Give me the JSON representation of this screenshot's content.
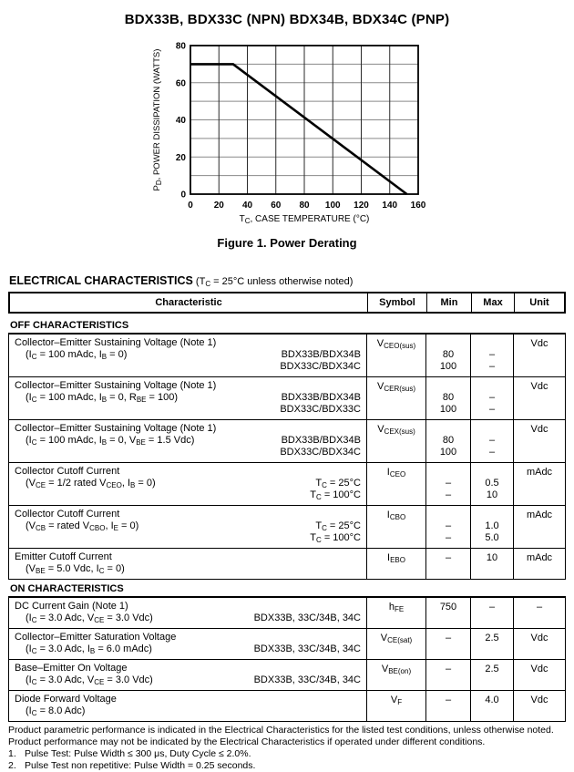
{
  "page": {
    "title": "BDX33B, BDX33C (NPN) BDX34B, BDX34C (PNP)"
  },
  "figure": {
    "caption": "Figure 1. Power Derating"
  },
  "chart_data": {
    "type": "line",
    "title": "Figure 1. Power Derating",
    "xlabel": "T~C~, CASE TEMPERATURE (°C)",
    "ylabel": "P~D~, POWER DISSIPATION (WATTS)",
    "xlim": [
      0,
      160
    ],
    "ylim": [
      0,
      80
    ],
    "x_ticks": [
      0,
      20,
      40,
      60,
      80,
      100,
      120,
      140,
      160
    ],
    "y_ticks": [
      0,
      20,
      40,
      60,
      80
    ],
    "x_grid_step": 20,
    "y_grid_step": 10,
    "grid": true,
    "legend_position": "none",
    "series": [
      {
        "name": "power-derating",
        "points": [
          [
            0,
            70
          ],
          [
            30,
            70
          ],
          [
            152,
            0
          ]
        ]
      }
    ]
  },
  "electrical": {
    "heading_bold": "ELECTRICAL CHARACTERISTICS",
    "heading_rest": "(T~C~ = 25°C unless otherwise noted)"
  },
  "table": {
    "columns": [
      "Characteristic",
      "Symbol",
      "Min",
      "Max",
      "Unit"
    ],
    "sections": [
      {
        "title": "OFF CHARACTERISTICS",
        "rows": [
          {
            "name": "Collector–Emitter Sustaining Voltage (Note 1)",
            "condition": "(I~C~ = 100 mAdc, I~B~ = 0)",
            "right_lines": [
              "BDX33B/BDX34B",
              "BDX33C/BDX34C"
            ],
            "symbol": "V~CEO(sus)~",
            "min": [
              "80",
              "100"
            ],
            "max": [
              "–",
              "–"
            ],
            "unit": "Vdc"
          },
          {
            "name": "Collector–Emitter Sustaining Voltage (Note 1)",
            "condition": "(I~C~ = 100 mAdc, I~B~ = 0, R~BE~ = 100)",
            "right_lines": [
              "BDX33B/BDX34B",
              "BDX33C/BDX33C"
            ],
            "symbol": "V~CER(sus)~",
            "min": [
              "80",
              "100"
            ],
            "max": [
              "–",
              "–"
            ],
            "unit": "Vdc"
          },
          {
            "name": "Collector–Emitter Sustaining Voltage (Note 1)",
            "condition": "(I~C~ = 100 mAdc, I~B~ = 0, V~BE~ = 1.5 Vdc)",
            "right_lines": [
              "BDX33B/BDX34B",
              "BDX33C/BDX34C"
            ],
            "symbol": "V~CEX(sus)~",
            "min": [
              "80",
              "100"
            ],
            "max": [
              "–",
              "–"
            ],
            "unit": "Vdc"
          },
          {
            "name": "Collector Cutoff Current",
            "condition": "(V~CE~ = 1/2 rated V~CEO~, I~B~ = 0)",
            "right_lines": [
              "T~C~ = 25°C",
              "T~C~ = 100°C"
            ],
            "symbol": "I~CEO~",
            "min": [
              "–",
              "–"
            ],
            "max": [
              "0.5",
              "10"
            ],
            "unit": "mAdc"
          },
          {
            "name": "Collector Cutoff Current",
            "condition": "(V~CB~ = rated V~CBO~, I~E~ = 0)",
            "right_lines": [
              "T~C~ = 25°C",
              "T~C~ = 100°C"
            ],
            "symbol": "I~CBO~",
            "min": [
              "–",
              "–"
            ],
            "max": [
              "1.0",
              "5.0"
            ],
            "unit": "mAdc"
          },
          {
            "name": "Emitter Cutoff Current",
            "condition": "(V~BE~ = 5.0 Vdc, I~C~ = 0)",
            "right_lines": [],
            "symbol": "I~EBO~",
            "min": [
              "–"
            ],
            "max": [
              "10"
            ],
            "unit": "mAdc"
          }
        ]
      },
      {
        "title": "ON CHARACTERISTICS",
        "rows": [
          {
            "name": "DC Current Gain (Note 1)",
            "condition": "(I~C~ = 3.0 Adc, V~CE~ = 3.0 Vdc)",
            "right_lines": [
              "BDX33B, 33C/34B, 34C"
            ],
            "symbol": "h~FE~",
            "min": [
              "750"
            ],
            "max": [
              "–"
            ],
            "unit": "–"
          },
          {
            "name": "Collector–Emitter Saturation Voltage",
            "condition": "(I~C~ = 3.0 Adc, I~B~ = 6.0 mAdc)",
            "right_lines": [
              "BDX33B, 33C/34B, 34C"
            ],
            "symbol": "V~CE(sat)~",
            "min": [
              "–"
            ],
            "max": [
              "2.5"
            ],
            "unit": "Vdc"
          },
          {
            "name": "Base–Emitter On Voltage",
            "condition": "(I~C~ = 3.0 Adc, V~CE~ = 3.0 Vdc)",
            "right_lines": [
              "BDX33B, 33C/34B, 34C"
            ],
            "symbol": "V~BE(on)~",
            "min": [
              "–"
            ],
            "max": [
              "2.5"
            ],
            "unit": "Vdc"
          },
          {
            "name": "Diode Forward Voltage",
            "condition": "(I~C~ = 8.0 Adc)",
            "right_lines": [],
            "symbol": "V~F~",
            "min": [
              "–"
            ],
            "max": [
              "4.0"
            ],
            "unit": "Vdc"
          }
        ]
      }
    ]
  },
  "footer": {
    "paragraph": "Product parametric performance is indicated in the Electrical Characteristics for the listed test conditions, unless otherwise noted. Product performance may not be indicated by the Electrical Characteristics if operated under different conditions.",
    "notes": [
      {
        "num": "1.",
        "text": "Pulse Test: Pulse Width ≤ 300 μs, Duty Cycle ≤ 2.0%."
      },
      {
        "num": "2.",
        "text": "Pulse Test non repetitive: Pulse Width = 0.25 seconds."
      }
    ]
  },
  "colors": {
    "ink": "#000000",
    "grid_horizontal": "#8a8a8a",
    "grid_vertical": "#2a2a2a",
    "paper": "#ffffff"
  }
}
